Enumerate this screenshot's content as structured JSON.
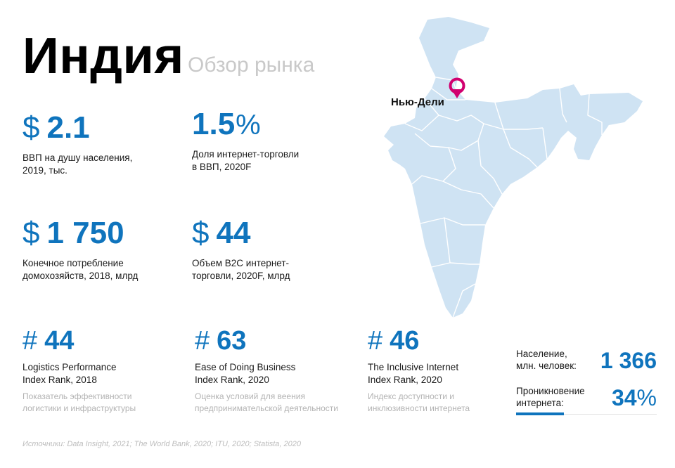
{
  "header": {
    "title": "Индия",
    "subtitle": "Обзор рынка"
  },
  "stats": [
    {
      "prefix": "$",
      "value": "2.1",
      "suffix": "",
      "caption": "ВВП на душу населения,\n2019, тыс."
    },
    {
      "prefix": "",
      "value": "1.5",
      "suffix": "%",
      "caption": "Доля интернет-торговли\nв ВВП, 2020F"
    },
    {
      "prefix": "$",
      "value": "1 750",
      "suffix": "",
      "caption": "Конечное потребление\nдомохозяйств, 2018, млрд"
    },
    {
      "prefix": "$",
      "value": "44",
      "suffix": "",
      "caption": "Объем B2C интернет-\nторговли, 2020F, млрд"
    }
  ],
  "ranks": [
    {
      "prefix": "#",
      "value": "44",
      "caption": "Logistics Performance\nIndex Rank, 2018",
      "note": "Показатель эффективности\nлогистики и инфраструктуры"
    },
    {
      "prefix": "#",
      "value": "63",
      "caption": "Ease of Doing Business\nIndex Rank, 2020",
      "note": "Оценка условий для веения\nпредпринимательской деятельности"
    },
    {
      "prefix": "#",
      "value": "46",
      "caption": "The Inclusive Internet\nIndex Rank, 2020",
      "note": "Индекс доступности и\nинклюзивности интернета"
    }
  ],
  "map": {
    "city": "Нью-Дели",
    "fill_color": "#cfe3f3",
    "pin_color": "#d1006f"
  },
  "metrics": {
    "population": {
      "label": "Население,\nмлн. человек:",
      "value": "1 366"
    },
    "penetration": {
      "label": "Проникновение\nинтернета:",
      "value": "34",
      "suffix": "%",
      "fraction": 0.34
    }
  },
  "footer": {
    "sources": "Источники: Data Insight, 2021; The World Bank, 2020; ITU, 2020; Statista, 2020"
  },
  "colors": {
    "accent": "#0f74bd",
    "muted": "#b3b3b3"
  }
}
